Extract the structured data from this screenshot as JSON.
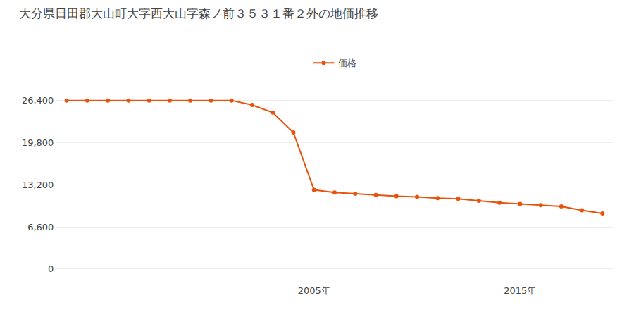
{
  "chart_data": {
    "type": "line",
    "title": "大分県日田郡大山町大字西大山字森ノ前３５３１番２外の地価推移",
    "x": [
      1993,
      1994,
      1995,
      1996,
      1997,
      1998,
      1999,
      2000,
      2001,
      2002,
      2003,
      2004,
      2005,
      2006,
      2007,
      2008,
      2009,
      2010,
      2011,
      2012,
      2013,
      2014,
      2015,
      2016,
      2017,
      2018,
      2019
    ],
    "series": [
      {
        "name": "価格",
        "color": "#e8520a",
        "marker": "circle",
        "values": [
          26400,
          26400,
          26400,
          26400,
          26400,
          26400,
          26400,
          26400,
          26400,
          25700,
          24500,
          21400,
          12400,
          12000,
          11800,
          11600,
          11400,
          11300,
          11100,
          11000,
          10700,
          10400,
          10200,
          10000,
          9800,
          9200,
          8700
        ]
      }
    ],
    "xlim": [
      1992.5,
      2019.5
    ],
    "xticks": [
      {
        "value": 2005,
        "label": "2005年"
      },
      {
        "value": 2015,
        "label": "2015年"
      }
    ],
    "ylim": [
      -2000,
      30000
    ],
    "yticks": [
      0,
      {
        "value": 6600,
        "label": "6,600"
      },
      {
        "value": 13200,
        "label": "13,200"
      },
      {
        "value": 19800,
        "label": "19,800"
      },
      {
        "value": 26400,
        "label": "26,400"
      }
    ],
    "grid": true,
    "legend": "top"
  }
}
